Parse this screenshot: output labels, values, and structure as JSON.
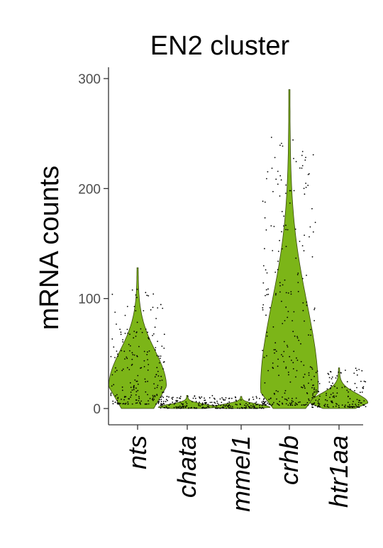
{
  "chart_data": {
    "type": "violin",
    "title": "EN2 cluster",
    "xlabel": "",
    "ylabel": "mRNA counts",
    "categories": [
      "nts",
      "chata",
      "mmel1",
      "crhb",
      "htr1aa"
    ],
    "ylim": [
      0,
      300
    ],
    "yticks": [
      0,
      100,
      200,
      300
    ],
    "grid": false,
    "legend": "none",
    "fill_color": "#7cb518",
    "point_color": "#000000",
    "series": [
      {
        "category": "nts",
        "max": 128,
        "mode": 20,
        "spread": 45,
        "n_points": 220
      },
      {
        "category": "chata",
        "max": 12,
        "mode": 1,
        "spread": 4,
        "n_points": 120
      },
      {
        "category": "mmel1",
        "max": 11,
        "mode": 1,
        "spread": 4,
        "n_points": 120
      },
      {
        "category": "crhb",
        "max": 290,
        "mode": 15,
        "spread": 110,
        "n_points": 260
      },
      {
        "category": "htr1aa",
        "max": 37,
        "mode": 5,
        "spread": 12,
        "n_points": 150
      }
    ]
  }
}
